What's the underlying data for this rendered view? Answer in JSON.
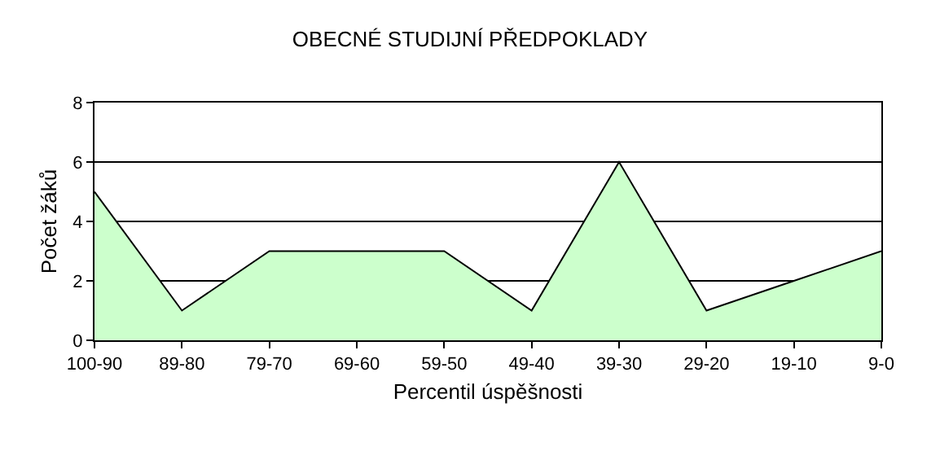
{
  "chart_data": {
    "type": "area",
    "title": "OBECNÉ STUDIJNÍ PŘEDPOKLADY",
    "xlabel": "Percentil úspěšnosti",
    "ylabel": "Počet žáků",
    "categories": [
      "100-90",
      "89-80",
      "79-70",
      "69-60",
      "59-50",
      "49-40",
      "39-30",
      "29-20",
      "19-10",
      "9-0"
    ],
    "series": [
      {
        "color": "#ccffcc",
        "values": [
          5,
          1,
          3,
          3,
          3,
          1,
          6,
          1,
          2,
          3
        ]
      }
    ],
    "ylim": [
      0,
      8
    ],
    "yticks": [
      0,
      2,
      4,
      6,
      8
    ],
    "grid": "y"
  }
}
